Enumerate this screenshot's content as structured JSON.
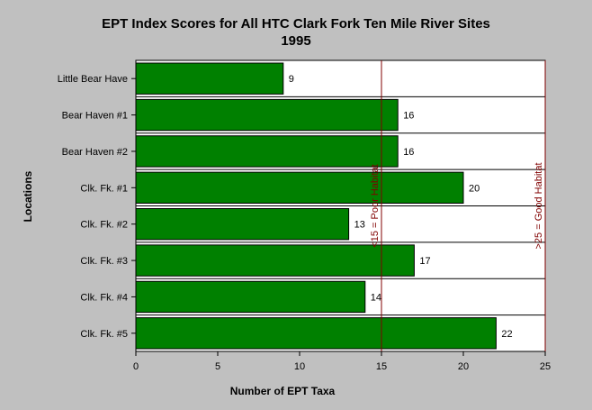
{
  "chart_data": {
    "type": "bar",
    "orientation": "horizontal",
    "title": "EPT Index Scores for All HTC Clark Fork Ten Mile River Sites",
    "subtitle": "1995",
    "xlabel": "Number of EPT Taxa",
    "ylabel": "Locations",
    "xlim": [
      0,
      25
    ],
    "xticks": [
      "0",
      "5",
      "10",
      "15",
      "20",
      "25"
    ],
    "categories": [
      "Little Bear Have",
      "Bear Haven #1",
      "Bear Haven #2",
      "Clk. Fk. #1",
      "Clk. Fk. #2",
      "Clk. Fk. #3",
      "Clk. Fk. #4",
      "Clk. Fk. #5"
    ],
    "values": [
      9,
      16,
      16,
      20,
      13,
      17,
      14,
      22
    ],
    "data_labels": [
      "9",
      "16",
      "16",
      "20",
      "13",
      "17",
      "14",
      "22"
    ],
    "bar_color": "#008000",
    "plot_background": "#ffffff",
    "page_background": "#c0c0c0",
    "grid": false,
    "reference_lines": [
      {
        "value": 15,
        "label": "<15 = Poor Habitat",
        "color": "#800000"
      },
      {
        "value": 25,
        "label": ">25 = Good Habitat",
        "color": "#800000"
      }
    ]
  }
}
